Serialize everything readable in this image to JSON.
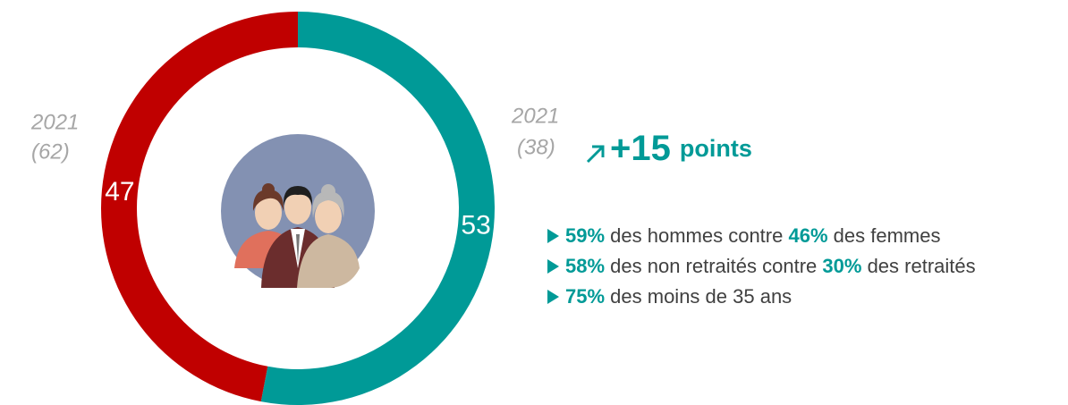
{
  "chart_data": {
    "type": "donut",
    "values": [
      53,
      47
    ],
    "colors": [
      "#009a97",
      "#c00000"
    ],
    "start_angle": 0,
    "left_note": [
      "2021",
      "(62)"
    ],
    "right_note": [
      "2021",
      "(38)"
    ],
    "change": {
      "value": "+15",
      "unit": "points",
      "color": "#009a97"
    },
    "bullets": [
      [
        {
          "text": "59%",
          "bold": true
        },
        {
          "text": " des hommes contre ",
          "bold": false
        },
        {
          "text": "46%",
          "bold": true
        },
        {
          "text": " des femmes",
          "bold": false
        }
      ],
      [
        {
          "text": "58%",
          "bold": true
        },
        {
          "text": " des non retraités contre ",
          "bold": false
        },
        {
          "text": "30%",
          "bold": true
        },
        {
          "text": " des retraités",
          "bold": false
        }
      ],
      [
        {
          "text": "75%",
          "bold": true
        },
        {
          "text": " des moins de 35 ans",
          "bold": false
        }
      ]
    ]
  }
}
